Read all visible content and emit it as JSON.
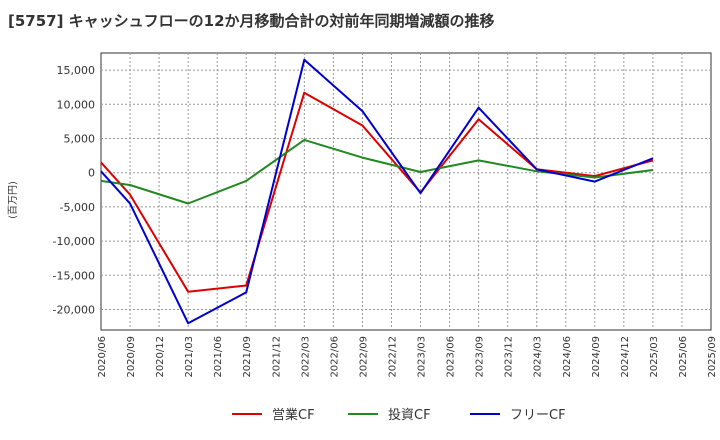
{
  "chart_data": {
    "type": "line",
    "title": "[5757]  キャッシュフローの12か月移動合計の対前年同期増減額の推移",
    "xlabel": "",
    "ylabel": "(百万円)",
    "x": [
      "2020/06",
      "2020/09",
      "2020/12",
      "2021/03",
      "2021/06",
      "2021/09",
      "2021/12",
      "2022/03",
      "2022/06",
      "2022/09",
      "2022/12",
      "2023/03",
      "2023/06",
      "2023/09",
      "2023/12",
      "2024/03",
      "2024/06",
      "2024/09",
      "2024/12",
      "2025/03",
      "2025/06",
      "2025/09"
    ],
    "ylim": [
      -23000,
      17500
    ],
    "yticks": [
      15000,
      10000,
      5000,
      0,
      -5000,
      -10000,
      -15000,
      -20000
    ],
    "ytick_labels": [
      "15,000",
      "10,000",
      "5,000",
      "0",
      "-5,000",
      "-10,000",
      "-15,000",
      "-20,000"
    ],
    "grid": true,
    "legend_position": "bottom",
    "series": [
      {
        "name": "営業CF",
        "color": "#dd0000",
        "values": [
          1500,
          -3200,
          null,
          -17400,
          null,
          -16500,
          null,
          11700,
          null,
          6900,
          null,
          -2900,
          null,
          7800,
          null,
          500,
          null,
          -500,
          null,
          1800,
          null,
          null
        ]
      },
      {
        "name": "投資CF",
        "color": "#228822",
        "values": [
          -1200,
          -1800,
          null,
          -4500,
          null,
          -1200,
          null,
          4800,
          null,
          2200,
          null,
          100,
          null,
          1800,
          null,
          200,
          null,
          -700,
          null,
          400,
          null,
          null
        ]
      },
      {
        "name": "フリーCF",
        "color": "#0000cc",
        "values": [
          200,
          -4500,
          null,
          -22000,
          null,
          -17500,
          null,
          16500,
          null,
          9000,
          null,
          -3000,
          null,
          9500,
          null,
          500,
          null,
          -1300,
          null,
          2100,
          null,
          null
        ]
      }
    ]
  }
}
